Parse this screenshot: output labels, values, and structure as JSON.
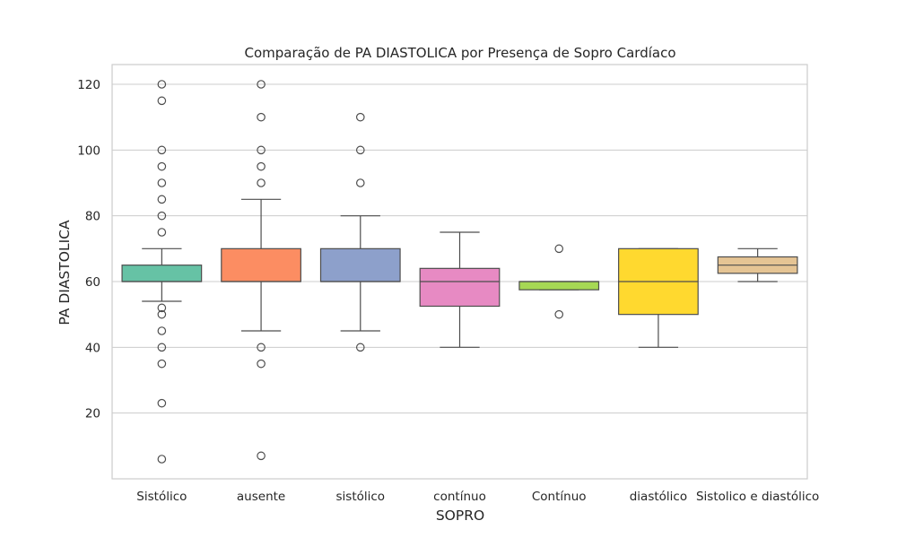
{
  "chart_data": {
    "type": "box",
    "title": "Comparação de PA DIASTOLICA por Presença de Sopro Cardíaco",
    "xlabel": "SOPRO",
    "ylabel": "PA DIASTOLICA",
    "ylim": [
      0,
      126
    ],
    "yticks": [
      20,
      40,
      60,
      80,
      100,
      120
    ],
    "grid": "horizontal",
    "categories": [
      "Sistólico",
      "ausente",
      "sistólico",
      "contínuo",
      "Contínuo",
      "diastólico",
      "Sistolico e diastólico"
    ],
    "boxes": [
      {
        "category": "Sistólico",
        "color": "#66c2a5",
        "whisker_low": 54,
        "q1": 60,
        "median": 60,
        "q3": 65,
        "whisker_high": 70,
        "outliers": [
          120,
          115,
          100,
          95,
          90,
          85,
          80,
          75,
          52,
          50,
          45,
          40,
          35,
          23,
          6
        ]
      },
      {
        "category": "ausente",
        "color": "#fc8d62",
        "whisker_low": 45,
        "q1": 60,
        "median": 60,
        "q3": 70,
        "whisker_high": 85,
        "outliers": [
          120,
          110,
          100,
          95,
          90,
          40,
          35,
          7
        ]
      },
      {
        "category": "sistólico",
        "color": "#8da0cb",
        "whisker_low": 45,
        "q1": 60,
        "median": 60,
        "q3": 70,
        "whisker_high": 80,
        "outliers": [
          110,
          100,
          90,
          40
        ]
      },
      {
        "category": "contínuo",
        "color": "#e78ac3",
        "whisker_low": 40,
        "q1": 52.5,
        "median": 60,
        "q3": 64,
        "whisker_high": 75,
        "outliers": []
      },
      {
        "category": "Contínuo",
        "color": "#a6d854",
        "whisker_low": 57.5,
        "q1": 57.5,
        "median": 60,
        "q3": 60,
        "whisker_high": 60,
        "outliers": [
          70,
          50
        ]
      },
      {
        "category": "diastólico",
        "color": "#ffd92f",
        "whisker_low": 40,
        "q1": 50,
        "median": 60,
        "q3": 70,
        "whisker_high": 70,
        "outliers": []
      },
      {
        "category": "Sistolico e diastólico",
        "color": "#e5c494",
        "whisker_low": 60,
        "q1": 62.5,
        "median": 65,
        "q3": 67.5,
        "whisker_high": 70,
        "outliers": []
      }
    ]
  }
}
